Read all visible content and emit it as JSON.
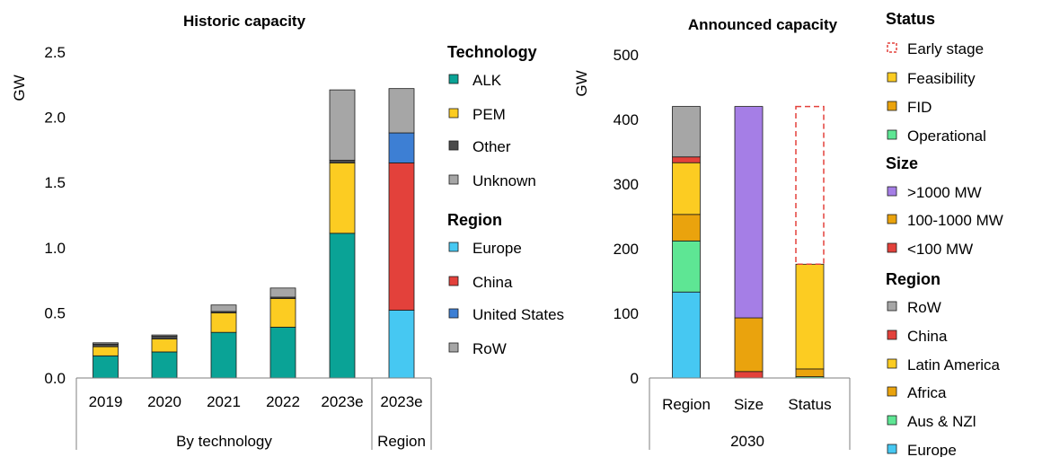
{
  "colors": {
    "alk": "#0aa396",
    "pem": "#fccc22",
    "other": "#4a4a4a",
    "unknown": "#a6a6a6",
    "europe": "#46c8f2",
    "china": "#e3413b",
    "united_states": "#3d7fd4",
    "row": "#a6a6a6",
    "early_stage": "#e3413b",
    "feasibility": "#fccc22",
    "fid": "#eaa30d",
    "operational": "#5ee694",
    "gt1000": "#a57ee6",
    "mw100_1000": "#eaa30d",
    "lt100": "#e3413b",
    "latin_america": "#fccc22",
    "africa": "#eaa30d",
    "aus_nzl": "#5ee694"
  },
  "chart_data": [
    {
      "type": "bar",
      "stacked": true,
      "title": "Historic capacity",
      "ylabel": "GW",
      "ylim": [
        0,
        2.5
      ],
      "yticks": [
        "0.0",
        "0.5",
        "1.0",
        "1.5",
        "2.0",
        "2.5"
      ],
      "ytick_values": [
        0,
        0.5,
        1.0,
        1.5,
        2.0,
        2.5
      ],
      "grid": false,
      "categories": [
        "2019",
        "2020",
        "2021",
        "2022",
        "2023e",
        "2023e"
      ],
      "category_groups": [
        {
          "label": "By technology",
          "count": 5
        },
        {
          "label": "Region",
          "count": 1
        }
      ],
      "series": [
        {
          "name": "ALK",
          "color_key": "alk",
          "values": [
            0.17,
            0.2,
            0.35,
            0.39,
            1.11,
            0
          ]
        },
        {
          "name": "PEM",
          "color_key": "pem",
          "values": [
            0.07,
            0.1,
            0.15,
            0.22,
            0.54,
            0
          ]
        },
        {
          "name": "Other",
          "color_key": "other",
          "values": [
            0.02,
            0.02,
            0.01,
            0.01,
            0.02,
            0
          ]
        },
        {
          "name": "Unknown",
          "color_key": "unknown",
          "values": [
            0.01,
            0.01,
            0.05,
            0.07,
            0.54,
            0
          ]
        },
        {
          "name": "Europe",
          "color_key": "europe",
          "values": [
            0,
            0,
            0,
            0,
            0,
            0.52
          ]
        },
        {
          "name": "China",
          "color_key": "china",
          "values": [
            0,
            0,
            0,
            0,
            0,
            1.13
          ]
        },
        {
          "name": "United States",
          "color_key": "united_states",
          "values": [
            0,
            0,
            0,
            0,
            0,
            0.23
          ]
        },
        {
          "name": "RoW",
          "color_key": "row",
          "values": [
            0,
            0,
            0,
            0,
            0,
            0.34
          ]
        }
      ],
      "legend": {
        "placement": "right",
        "groups": [
          {
            "title": "Technology",
            "items": [
              {
                "label": "ALK",
                "color_key": "alk"
              },
              {
                "label": "PEM",
                "color_key": "pem"
              },
              {
                "label": "Other",
                "color_key": "other"
              },
              {
                "label": "Unknown",
                "color_key": "unknown"
              }
            ]
          },
          {
            "title": "Region",
            "items": [
              {
                "label": "Europe",
                "color_key": "europe"
              },
              {
                "label": "China",
                "color_key": "china"
              },
              {
                "label": "United States",
                "color_key": "united_states"
              },
              {
                "label": "RoW",
                "color_key": "row"
              }
            ]
          }
        ]
      }
    },
    {
      "type": "bar",
      "stacked": true,
      "title": "Announced capacity",
      "ylabel": "GW",
      "ylim": [
        0,
        500
      ],
      "yticks": [
        "0",
        "100",
        "200",
        "300",
        "400",
        "500"
      ],
      "ytick_values": [
        0,
        100,
        200,
        300,
        400,
        500
      ],
      "grid": false,
      "categories": [
        "Region",
        "Size",
        "Status"
      ],
      "category_groups": [
        {
          "label": "2030",
          "count": 3
        }
      ],
      "series": [
        {
          "name": "Europe",
          "color_key": "europe",
          "values": [
            133,
            0,
            0
          ]
        },
        {
          "name": "Aus & NZl",
          "color_key": "aus_nzl",
          "values": [
            79,
            0,
            0
          ]
        },
        {
          "name": "Africa",
          "color_key": "africa",
          "values": [
            41,
            0,
            0
          ]
        },
        {
          "name": "Latin America",
          "color_key": "latin_america",
          "values": [
            80,
            0,
            0
          ]
        },
        {
          "name": "China",
          "color_key": "china",
          "values": [
            9,
            0,
            0
          ]
        },
        {
          "name": "RoW",
          "color_key": "row",
          "values": [
            78,
            0,
            0
          ]
        },
        {
          "name": "<100 MW",
          "color_key": "lt100",
          "values": [
            0,
            10,
            0
          ]
        },
        {
          "name": "100-1000 MW",
          "color_key": "mw100_1000",
          "values": [
            0,
            83,
            0
          ]
        },
        {
          "name": ">1000 MW",
          "color_key": "gt1000",
          "values": [
            0,
            327,
            0
          ]
        },
        {
          "name": "Operational",
          "color_key": "operational",
          "values": [
            0,
            0,
            2
          ]
        },
        {
          "name": "FID",
          "color_key": "fid",
          "values": [
            0,
            0,
            12
          ]
        },
        {
          "name": "Feasibility",
          "color_key": "feasibility",
          "values": [
            0,
            0,
            162
          ]
        },
        {
          "name": "Early stage",
          "color_key": "early_stage",
          "dashed_outline": true,
          "values": [
            0,
            0,
            244
          ]
        }
      ],
      "legend": {
        "placement": "right",
        "groups": [
          {
            "title": "Status",
            "items": [
              {
                "label": "Early stage",
                "color_key": "early_stage",
                "dashed": true
              },
              {
                "label": "Feasibility",
                "color_key": "feasibility"
              },
              {
                "label": "FID",
                "color_key": "fid"
              },
              {
                "label": "Operational",
                "color_key": "operational"
              }
            ]
          },
          {
            "title": "Size",
            "items": [
              {
                "label": ">1000 MW",
                "color_key": "gt1000"
              },
              {
                "label": "100-1000 MW",
                "color_key": "mw100_1000"
              },
              {
                "label": "<100 MW",
                "color_key": "lt100"
              }
            ]
          },
          {
            "title": "Region",
            "items": [
              {
                "label": "RoW",
                "color_key": "row"
              },
              {
                "label": "China",
                "color_key": "china"
              },
              {
                "label": "Latin America",
                "color_key": "latin_america"
              },
              {
                "label": "Africa",
                "color_key": "africa"
              },
              {
                "label": "Aus & NZl",
                "color_key": "aus_nzl"
              },
              {
                "label": "Europe",
                "color_key": "europe"
              }
            ]
          }
        ]
      }
    }
  ]
}
